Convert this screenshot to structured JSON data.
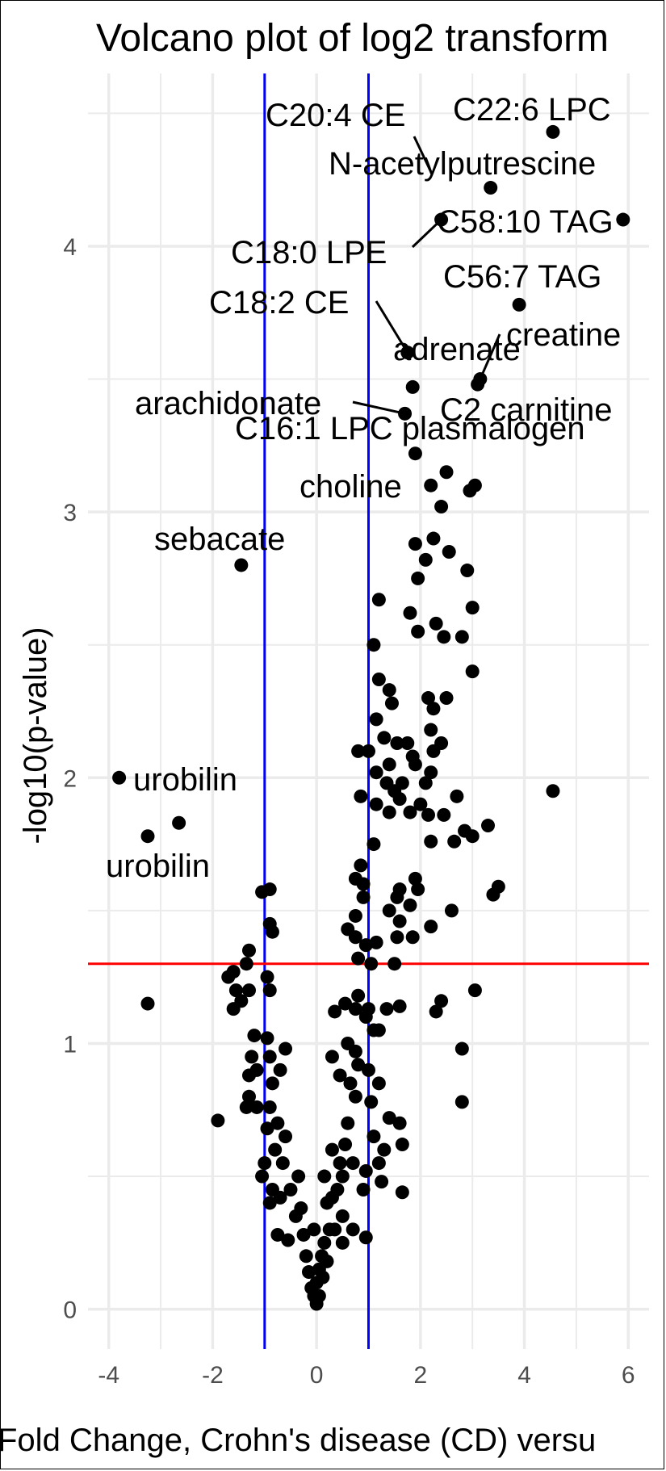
{
  "chart_data": {
    "type": "scatter",
    "title": "Volcano plot of log2 transform",
    "xlabel": "Fold Change, Crohn's disease (CD) versu",
    "ylabel": "-log10(p-value)",
    "xlim": [
      -4.4,
      6.4
    ],
    "ylim": [
      -0.15,
      4.65
    ],
    "x_ticks": [
      -4,
      -2,
      0,
      2,
      4,
      6
    ],
    "y_ticks": [
      0,
      1,
      2,
      3,
      4
    ],
    "x_tick_labels": [
      "-4",
      "-2",
      "0",
      "2",
      "4",
      "6"
    ],
    "y_tick_labels": [
      "0",
      "1",
      "2",
      "3",
      "4"
    ],
    "grid": true,
    "colors": {
      "points": "#000000",
      "fold_threshold": "#0000ff",
      "p_threshold": "#ff0000",
      "grid": "#ebebeb",
      "tick_text": "#4d4d4d"
    },
    "thresholds": {
      "fold_change": [
        -1,
        1
      ],
      "p_value": 1.3
    },
    "points": [
      [
        4.55,
        4.43
      ],
      [
        3.35,
        4.22
      ],
      [
        2.4,
        4.1
      ],
      [
        5.9,
        4.1
      ],
      [
        3.9,
        3.78
      ],
      [
        1.75,
        3.6
      ],
      [
        3.15,
        3.5
      ],
      [
        3.1,
        3.48
      ],
      [
        1.85,
        3.47
      ],
      [
        1.7,
        3.37
      ],
      [
        1.9,
        3.22
      ],
      [
        2.5,
        3.15
      ],
      [
        2.2,
        3.1
      ],
      [
        3.05,
        3.1
      ],
      [
        2.95,
        3.08
      ],
      [
        2.4,
        3.02
      ],
      [
        2.25,
        2.9
      ],
      [
        1.9,
        2.88
      ],
      [
        2.1,
        2.82
      ],
      [
        2.55,
        2.85
      ],
      [
        2.9,
        2.78
      ],
      [
        1.95,
        2.75
      ],
      [
        -1.45,
        2.8
      ],
      [
        1.2,
        2.67
      ],
      [
        3.0,
        2.64
      ],
      [
        1.8,
        2.62
      ],
      [
        2.3,
        2.58
      ],
      [
        1.95,
        2.55
      ],
      [
        2.45,
        2.53
      ],
      [
        2.8,
        2.53
      ],
      [
        1.1,
        2.5
      ],
      [
        3.0,
        2.4
      ],
      [
        1.2,
        2.37
      ],
      [
        1.4,
        2.33
      ],
      [
        1.45,
        2.28
      ],
      [
        2.15,
        2.3
      ],
      [
        2.5,
        2.3
      ],
      [
        2.25,
        2.26
      ],
      [
        1.15,
        2.22
      ],
      [
        2.2,
        2.18
      ],
      [
        1.3,
        2.15
      ],
      [
        1.55,
        2.13
      ],
      [
        1.75,
        2.13
      ],
      [
        2.4,
        2.13
      ],
      [
        0.8,
        2.1
      ],
      [
        1.0,
        2.1
      ],
      [
        1.85,
        2.08
      ],
      [
        2.25,
        2.1
      ],
      [
        1.4,
        2.05
      ],
      [
        1.9,
        2.05
      ],
      [
        1.15,
        2.02
      ],
      [
        2.2,
        2.02
      ],
      [
        1.35,
        1.98
      ],
      [
        1.65,
        1.98
      ],
      [
        2.1,
        1.98
      ],
      [
        1.5,
        1.95
      ],
      [
        0.85,
        1.93
      ],
      [
        1.15,
        1.9
      ],
      [
        1.6,
        1.92
      ],
      [
        2.7,
        1.93
      ],
      [
        1.8,
        1.87
      ],
      [
        2.0,
        1.9
      ],
      [
        1.4,
        1.87
      ],
      [
        2.15,
        1.86
      ],
      [
        2.45,
        1.86
      ],
      [
        4.55,
        1.95
      ],
      [
        -3.8,
        2.0
      ],
      [
        -2.65,
        1.83
      ],
      [
        -3.25,
        1.78
      ],
      [
        3.3,
        1.82
      ],
      [
        2.85,
        1.8
      ],
      [
        3.0,
        1.78
      ],
      [
        2.65,
        1.76
      ],
      [
        2.2,
        1.76
      ],
      [
        1.1,
        1.75
      ],
      [
        0.85,
        1.67
      ],
      [
        0.75,
        1.62
      ],
      [
        0.9,
        1.6
      ],
      [
        1.9,
        1.62
      ],
      [
        1.6,
        1.58
      ],
      [
        1.95,
        1.58
      ],
      [
        3.5,
        1.59
      ],
      [
        3.4,
        1.56
      ],
      [
        1.55,
        1.55
      ],
      [
        0.9,
        1.55
      ],
      [
        1.8,
        1.52
      ],
      [
        1.4,
        1.5
      ],
      [
        2.6,
        1.5
      ],
      [
        0.75,
        1.48
      ],
      [
        1.6,
        1.46
      ],
      [
        2.2,
        1.44
      ],
      [
        0.6,
        1.43
      ],
      [
        -0.9,
        1.58
      ],
      [
        -1.05,
        1.57
      ],
      [
        -0.9,
        1.45
      ],
      [
        -0.85,
        1.42
      ],
      [
        0.75,
        1.4
      ],
      [
        0.95,
        1.37
      ],
      [
        1.15,
        1.38
      ],
      [
        1.55,
        1.4
      ],
      [
        1.85,
        1.4
      ],
      [
        0.8,
        1.32
      ],
      [
        1.05,
        1.3
      ],
      [
        1.5,
        1.3
      ],
      [
        -1.3,
        1.35
      ],
      [
        -1.35,
        1.3
      ],
      [
        -1.6,
        1.27
      ],
      [
        -1.7,
        1.25
      ],
      [
        -1.55,
        1.2
      ],
      [
        -1.3,
        1.2
      ],
      [
        -1.45,
        1.16
      ],
      [
        -1.6,
        1.13
      ],
      [
        -0.95,
        1.25
      ],
      [
        -0.9,
        1.2
      ],
      [
        0.8,
        1.18
      ],
      [
        0.55,
        1.15
      ],
      [
        0.75,
        1.13
      ],
      [
        1.0,
        1.13
      ],
      [
        1.35,
        1.13
      ],
      [
        1.6,
        1.14
      ],
      [
        2.4,
        1.16
      ],
      [
        2.3,
        1.12
      ],
      [
        3.05,
        1.2
      ],
      [
        -3.25,
        1.15
      ],
      [
        0.35,
        1.12
      ],
      [
        0.95,
        1.1
      ],
      [
        1.1,
        1.05
      ],
      [
        1.2,
        1.05
      ],
      [
        -1.2,
        1.03
      ],
      [
        -0.95,
        1.02
      ],
      [
        -0.9,
        0.95
      ],
      [
        -1.25,
        0.95
      ],
      [
        -0.6,
        0.98
      ],
      [
        0.6,
        1.0
      ],
      [
        0.75,
        0.97
      ],
      [
        2.8,
        0.98
      ],
      [
        -1.15,
        0.9
      ],
      [
        -0.7,
        0.9
      ],
      [
        -0.85,
        0.85
      ],
      [
        -1.3,
        0.88
      ],
      [
        0.3,
        0.95
      ],
      [
        0.8,
        0.92
      ],
      [
        1.0,
        0.9
      ],
      [
        1.2,
        0.85
      ],
      [
        0.45,
        0.88
      ],
      [
        -1.3,
        0.8
      ],
      [
        -1.35,
        0.76
      ],
      [
        -1.15,
        0.76
      ],
      [
        -0.9,
        0.76
      ],
      [
        2.8,
        0.78
      ],
      [
        -1.9,
        0.71
      ],
      [
        -0.75,
        0.7
      ],
      [
        -0.95,
        0.68
      ],
      [
        -0.6,
        0.65
      ],
      [
        -0.8,
        0.6
      ],
      [
        -1.0,
        0.55
      ],
      [
        -0.65,
        0.55
      ],
      [
        -1.05,
        0.5
      ],
      [
        -0.85,
        0.45
      ],
      [
        -0.7,
        0.42
      ],
      [
        -0.9,
        0.4
      ],
      [
        -0.5,
        0.45
      ],
      [
        -0.4,
        0.35
      ],
      [
        -0.75,
        0.28
      ],
      [
        -0.55,
        0.26
      ],
      [
        0.95,
        0.27
      ],
      [
        0.3,
        0.6
      ],
      [
        0.5,
        0.5
      ],
      [
        0.7,
        0.55
      ],
      [
        1.1,
        0.65
      ],
      [
        1.2,
        0.55
      ],
      [
        1.6,
        0.7
      ],
      [
        1.65,
        0.62
      ],
      [
        1.65,
        0.44
      ],
      [
        1.3,
        0.6
      ],
      [
        0.9,
        0.45
      ],
      [
        0.7,
        0.3
      ],
      [
        0.5,
        0.35
      ],
      [
        0.35,
        0.3
      ],
      [
        0.2,
        0.4
      ],
      [
        0.15,
        0.25
      ],
      [
        0.1,
        0.2
      ],
      [
        0.05,
        0.15
      ],
      [
        0.0,
        0.1
      ],
      [
        -0.05,
        0.05
      ],
      [
        0.0,
        0.02
      ],
      [
        0.05,
        0.05
      ],
      [
        -0.1,
        0.08
      ],
      [
        0.12,
        0.12
      ],
      [
        -0.15,
        0.14
      ],
      [
        0.2,
        0.18
      ],
      [
        -0.2,
        0.2
      ],
      [
        0.25,
        0.3
      ],
      [
        -0.25,
        0.28
      ],
      [
        0.3,
        0.42
      ],
      [
        -0.3,
        0.38
      ],
      [
        0.45,
        0.55
      ],
      [
        -0.35,
        0.5
      ],
      [
        0.6,
        0.7
      ],
      [
        0.75,
        0.8
      ],
      [
        0.55,
        0.62
      ],
      [
        0.65,
        0.85
      ],
      [
        0.4,
        0.45
      ],
      [
        -0.05,
        0.3
      ],
      [
        0.15,
        0.5
      ],
      [
        0.5,
        0.25
      ],
      [
        1.05,
        0.78
      ],
      [
        1.4,
        0.72
      ],
      [
        0.95,
        0.52
      ],
      [
        1.25,
        0.48
      ]
    ],
    "annotations": [
      {
        "text": "C22:6 LPC",
        "point": [
          4.55,
          4.43
        ]
      },
      {
        "text": "C20:4 CE",
        "point": [
          2.2,
          4.28
        ]
      },
      {
        "text": "N-acetylputrescine",
        "point": [
          3.35,
          4.22
        ]
      },
      {
        "text": "C58:10 TAG",
        "point": [
          5.9,
          4.1
        ]
      },
      {
        "text": "C18:0 LPE",
        "point": [
          2.4,
          4.1
        ]
      },
      {
        "text": "C56:7 TAG",
        "point": [
          3.9,
          3.78
        ]
      },
      {
        "text": "C18:2 CE",
        "point": [
          1.75,
          3.6
        ]
      },
      {
        "text": "creatine",
        "point": [
          3.15,
          3.5
        ]
      },
      {
        "text": "adrenate",
        "point": [
          1.85,
          3.47
        ]
      },
      {
        "text": "arachidonate",
        "point": [
          1.7,
          3.37
        ]
      },
      {
        "text": "C2 carnitine",
        "point": [
          3.1,
          3.48
        ]
      },
      {
        "text": "C16:1 LPC plasmalogen",
        "point": [
          1.7,
          3.37
        ]
      },
      {
        "text": "choline",
        "point": [
          2.2,
          3.1
        ]
      },
      {
        "text": "sebacate",
        "point": [
          -1.45,
          2.8
        ]
      },
      {
        "text": "urobilin",
        "point": [
          -3.8,
          2.0
        ]
      },
      {
        "text": "urobilin",
        "point": [
          -3.25,
          1.78
        ]
      }
    ]
  }
}
